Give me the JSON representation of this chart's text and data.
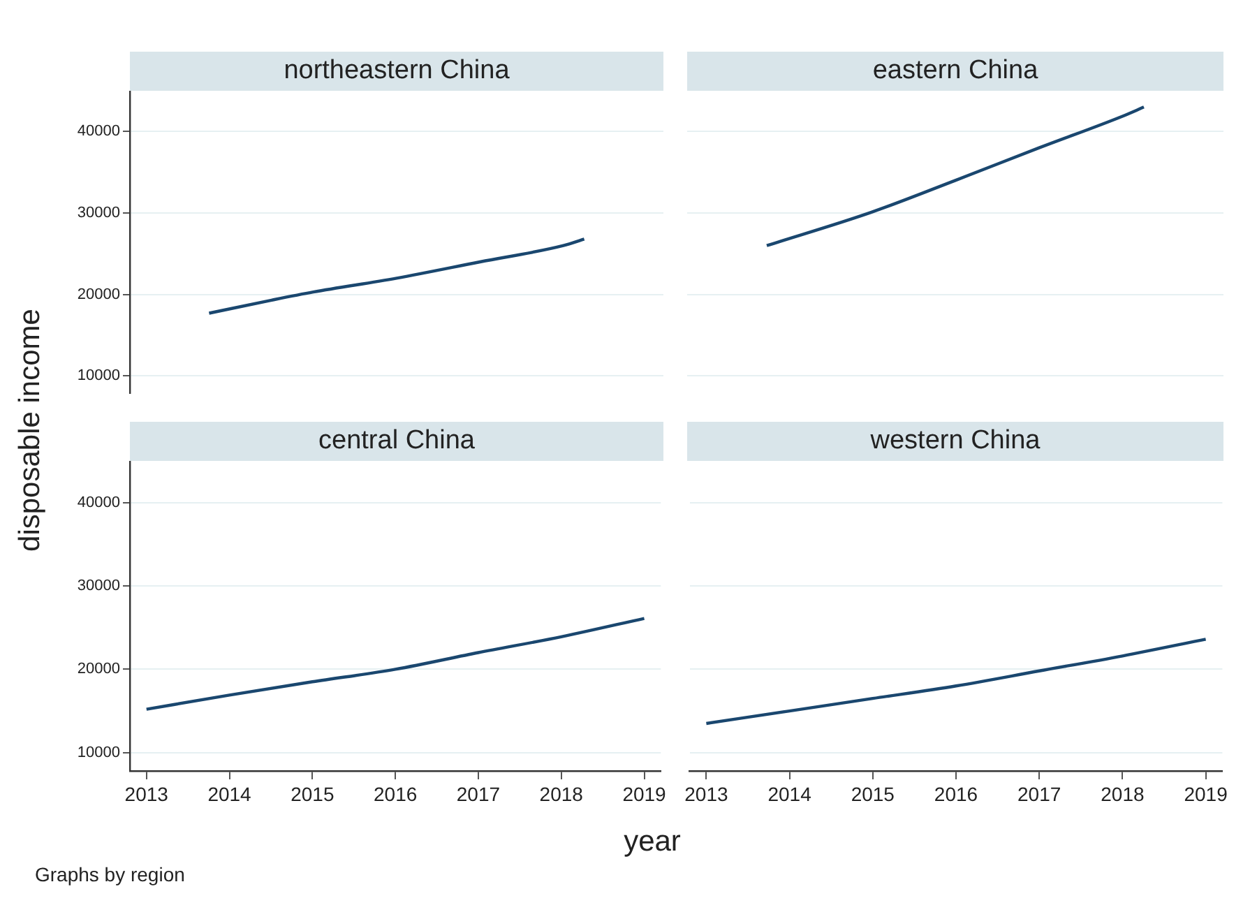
{
  "chart_data": [
    {
      "type": "line",
      "title": "northeastern China",
      "ylabel": "disposable income",
      "x": [
        2013.75,
        2014.5,
        2015,
        2016,
        2017,
        2018,
        2018.25
      ],
      "values": [
        17700,
        19300,
        20300,
        22000,
        24000,
        26000,
        26800
      ],
      "color": "#1a476f",
      "xlim": [
        2012.8,
        2019.2
      ],
      "ylim": [
        7800,
        45000
      ],
      "xticks": [
        2013,
        2014,
        2015,
        2016,
        2017,
        2018,
        2019
      ],
      "yticks": [
        10000,
        20000,
        30000,
        40000
      ],
      "grid": "y",
      "marker": "none",
      "tick_labels": "y"
    },
    {
      "type": "line",
      "title": "eastern China",
      "x": [
        2013.75,
        2015,
        2016,
        2017,
        2018,
        2018.25
      ],
      "values": [
        26000,
        30100,
        34000,
        38000,
        41900,
        43000
      ],
      "color": "#1a476f",
      "xlim": [
        2012.8,
        2019.2
      ],
      "xticks": [
        2013,
        2014,
        2015,
        2016,
        2017,
        2018,
        2019
      ],
      "yticks": [
        10000,
        20000,
        30000,
        40000
      ],
      "grid": "y",
      "marker": "none",
      "tick_labels": false
    },
    {
      "type": "line",
      "title": "central China",
      "xlabel": "year",
      "annotations": [
        "Graphs by region"
      ],
      "x": [
        2013,
        2014,
        2015,
        2016,
        2017,
        2018,
        2019
      ],
      "values": [
        15200,
        16900,
        18500,
        20000,
        22000,
        23900,
        26100
      ],
      "color": "#1a476f",
      "xlim": [
        2012.8,
        2019.2
      ],
      "ylim": [
        7800,
        45000
      ],
      "xticks": [
        2013,
        2014,
        2015,
        2016,
        2017,
        2018,
        2019
      ],
      "yticks": [
        10000,
        20000,
        30000,
        40000
      ],
      "grid": "y",
      "marker": "none"
    },
    {
      "type": "line",
      "title": "western China",
      "x": [
        2013,
        2014,
        2015,
        2016,
        2017,
        2018,
        2019
      ],
      "values": [
        13500,
        15000,
        16500,
        18000,
        19800,
        21600,
        23600
      ],
      "color": "#1a476f",
      "xlim": [
        2012.8,
        2019.2
      ],
      "xticks": [
        2013,
        2014,
        2015,
        2016,
        2017,
        2018,
        2019
      ],
      "yticks": [
        10000,
        20000,
        30000,
        40000
      ],
      "grid": "y",
      "marker": "none",
      "tick_labels": "x"
    }
  ]
}
